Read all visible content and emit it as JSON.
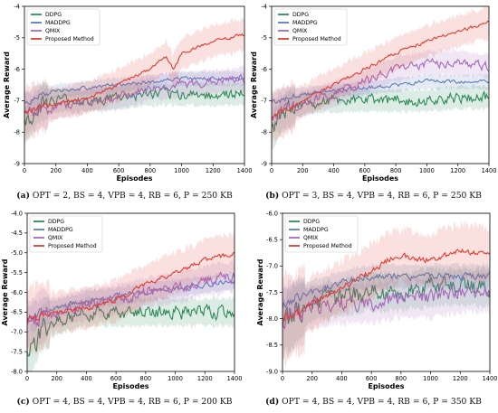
{
  "figure": {
    "captions": [
      {
        "label": "(a)",
        "text": " OPT = 2, BS = 4, VPB = 4, RB = 6, P = 250 KB"
      },
      {
        "label": "(b)",
        "text": " OPT = 3, BS = 4, VPB = 4, RB = 6, P = 250 KB"
      },
      {
        "label": "(c)",
        "text": " OPT = 4, BS = 4, VPB = 4, RB = 6, P = 200 KB"
      },
      {
        "label": "(d)",
        "text": " OPT = 4, BS = 4, VPB = 4, RB = 6, P = 350 KB"
      }
    ],
    "colors": {
      "DDPG": "#2e8b57",
      "MADDPG": "#5b7fb8",
      "QMIX": "#a569bd",
      "Proposed Method": "#e03c31"
    }
  },
  "chart_data": [
    {
      "type": "line",
      "xlabel": "Episodes",
      "ylabel": "Average Reward",
      "xlim": [
        0,
        1400
      ],
      "ylim": [
        -9,
        -4
      ],
      "xticks": [
        "0",
        "200",
        "400",
        "600",
        "800",
        "1000",
        "1200",
        "1400"
      ],
      "yticks": [
        "-9",
        "-8",
        "-7",
        "-6",
        "-5",
        "-4"
      ],
      "legend": "top-left",
      "grid": false,
      "series": [
        {
          "name": "DDPG",
          "x": [
            0,
            50,
            100,
            200,
            400,
            600,
            800,
            1000,
            1200,
            1400
          ],
          "values": [
            -7.8,
            -7.5,
            -7.1,
            -7.0,
            -7.0,
            -6.9,
            -6.8,
            -6.8,
            -6.8,
            -6.8
          ]
        },
        {
          "name": "MADDPG",
          "x": [
            0,
            100,
            200,
            400,
            600,
            800,
            1000,
            1200,
            1400
          ],
          "values": [
            -7.1,
            -6.8,
            -6.7,
            -6.6,
            -6.5,
            -6.4,
            -6.3,
            -6.3,
            -6.3
          ]
        },
        {
          "name": "QMIX",
          "x": [
            0,
            100,
            200,
            400,
            600,
            800,
            1000,
            1200,
            1400
          ],
          "values": [
            -7.4,
            -7.3,
            -7.2,
            -7.0,
            -6.9,
            -6.6,
            -6.5,
            -6.4,
            -6.3
          ]
        },
        {
          "name": "Proposed Method",
          "x": [
            0,
            100,
            200,
            400,
            600,
            800,
            900,
            950,
            1000,
            1100,
            1200,
            1300,
            1400
          ],
          "values": [
            -7.4,
            -7.2,
            -7.1,
            -6.9,
            -6.5,
            -6.0,
            -5.6,
            -6.0,
            -5.5,
            -5.3,
            -5.1,
            -5.0,
            -4.9
          ]
        }
      ]
    },
    {
      "type": "line",
      "xlabel": "Episodes",
      "ylabel": "Average Reward",
      "xlim": [
        0,
        1400
      ],
      "ylim": [
        -9,
        -4
      ],
      "xticks": [
        "0",
        "200",
        "400",
        "600",
        "800",
        "1000",
        "1200",
        "1400"
      ],
      "yticks": [
        "-9",
        "-8",
        "-7",
        "-6",
        "-5",
        "-4"
      ],
      "legend": "top-left",
      "grid": false,
      "series": [
        {
          "name": "DDPG",
          "x": [
            0,
            50,
            100,
            200,
            400,
            600,
            800,
            1000,
            1200,
            1400
          ],
          "values": [
            -8.0,
            -7.6,
            -7.3,
            -7.1,
            -7.0,
            -7.0,
            -7.0,
            -7.0,
            -6.9,
            -6.9
          ]
        },
        {
          "name": "MADDPG",
          "x": [
            0,
            100,
            200,
            400,
            600,
            800,
            1000,
            1200,
            1400
          ],
          "values": [
            -7.1,
            -6.9,
            -6.8,
            -6.7,
            -6.6,
            -6.5,
            -6.4,
            -6.4,
            -6.4
          ]
        },
        {
          "name": "QMIX",
          "x": [
            0,
            100,
            200,
            400,
            600,
            800,
            1000,
            1200,
            1400
          ],
          "values": [
            -7.5,
            -7.3,
            -7.1,
            -6.8,
            -6.4,
            -6.0,
            -5.8,
            -5.8,
            -5.9
          ]
        },
        {
          "name": "Proposed Method",
          "x": [
            0,
            100,
            200,
            400,
            600,
            800,
            1000,
            1200,
            1400
          ],
          "values": [
            -7.5,
            -7.3,
            -7.0,
            -6.5,
            -6.0,
            -5.5,
            -5.1,
            -4.8,
            -4.5
          ]
        }
      ]
    },
    {
      "type": "line",
      "xlabel": "Episodes",
      "ylabel": "Average Reward",
      "xlim": [
        0,
        1400
      ],
      "ylim": [
        -8,
        -4
      ],
      "xticks": [
        "0",
        "200",
        "400",
        "600",
        "800",
        "1000",
        "1200",
        "1400"
      ],
      "yticks": [
        "-8.0",
        "-7.5",
        "-7.0",
        "-6.5",
        "-6.0",
        "-5.5",
        "-5.0",
        "-4.5",
        "-4.0"
      ],
      "legend": "top-left",
      "grid": false,
      "series": [
        {
          "name": "DDPG",
          "x": [
            0,
            50,
            100,
            200,
            400,
            600,
            800,
            1000,
            1200,
            1400
          ],
          "values": [
            -7.6,
            -7.3,
            -6.9,
            -6.7,
            -6.5,
            -6.5,
            -6.5,
            -6.5,
            -6.5,
            -6.5
          ]
        },
        {
          "name": "MADDPG",
          "x": [
            0,
            100,
            200,
            400,
            600,
            800,
            1000,
            1200,
            1400
          ],
          "values": [
            -6.7,
            -6.5,
            -6.4,
            -6.2,
            -6.1,
            -6.0,
            -5.9,
            -5.8,
            -5.7
          ]
        },
        {
          "name": "QMIX",
          "x": [
            0,
            100,
            200,
            400,
            600,
            800,
            1000,
            1200,
            1400
          ],
          "values": [
            -6.8,
            -6.6,
            -6.5,
            -6.3,
            -6.2,
            -6.0,
            -5.9,
            -5.7,
            -5.6
          ]
        },
        {
          "name": "Proposed Method",
          "x": [
            0,
            100,
            200,
            400,
            600,
            800,
            1000,
            1200,
            1400
          ],
          "values": [
            -6.7,
            -6.6,
            -6.5,
            -6.4,
            -6.2,
            -5.8,
            -5.5,
            -5.2,
            -5.0
          ]
        }
      ]
    },
    {
      "type": "line",
      "xlabel": "Episodes",
      "ylabel": "Average Reward",
      "xlim": [
        0,
        1400
      ],
      "ylim": [
        -9,
        -6
      ],
      "xticks": [
        "0",
        "200",
        "400",
        "600",
        "800",
        "1000",
        "1200",
        "1400"
      ],
      "yticks": [
        "-9.0",
        "-8.5",
        "-8.0",
        "-7.5",
        "-7.0",
        "-6.5",
        "-6.0"
      ],
      "legend": "top-left",
      "grid": false,
      "series": [
        {
          "name": "DDPG",
          "x": [
            0,
            100,
            200,
            400,
            600,
            800,
            1000,
            1200,
            1400
          ],
          "values": [
            -8.2,
            -7.9,
            -7.7,
            -7.6,
            -7.5,
            -7.5,
            -7.4,
            -7.4,
            -7.4
          ]
        },
        {
          "name": "MADDPG",
          "x": [
            0,
            100,
            200,
            400,
            600,
            800,
            1000,
            1200,
            1400
          ],
          "values": [
            -7.8,
            -7.6,
            -7.5,
            -7.3,
            -7.2,
            -7.2,
            -7.2,
            -7.2,
            -7.2
          ]
        },
        {
          "name": "QMIX",
          "x": [
            0,
            100,
            200,
            400,
            600,
            800,
            1000,
            1200,
            1400
          ],
          "values": [
            -8.0,
            -7.9,
            -7.8,
            -7.7,
            -7.7,
            -7.6,
            -7.6,
            -7.5,
            -7.5
          ]
        },
        {
          "name": "Proposed Method",
          "x": [
            0,
            100,
            200,
            400,
            600,
            700,
            800,
            1000,
            1200,
            1400
          ],
          "values": [
            -8.0,
            -7.9,
            -7.7,
            -7.4,
            -7.1,
            -6.9,
            -6.8,
            -6.9,
            -6.7,
            -6.8
          ]
        }
      ]
    }
  ]
}
